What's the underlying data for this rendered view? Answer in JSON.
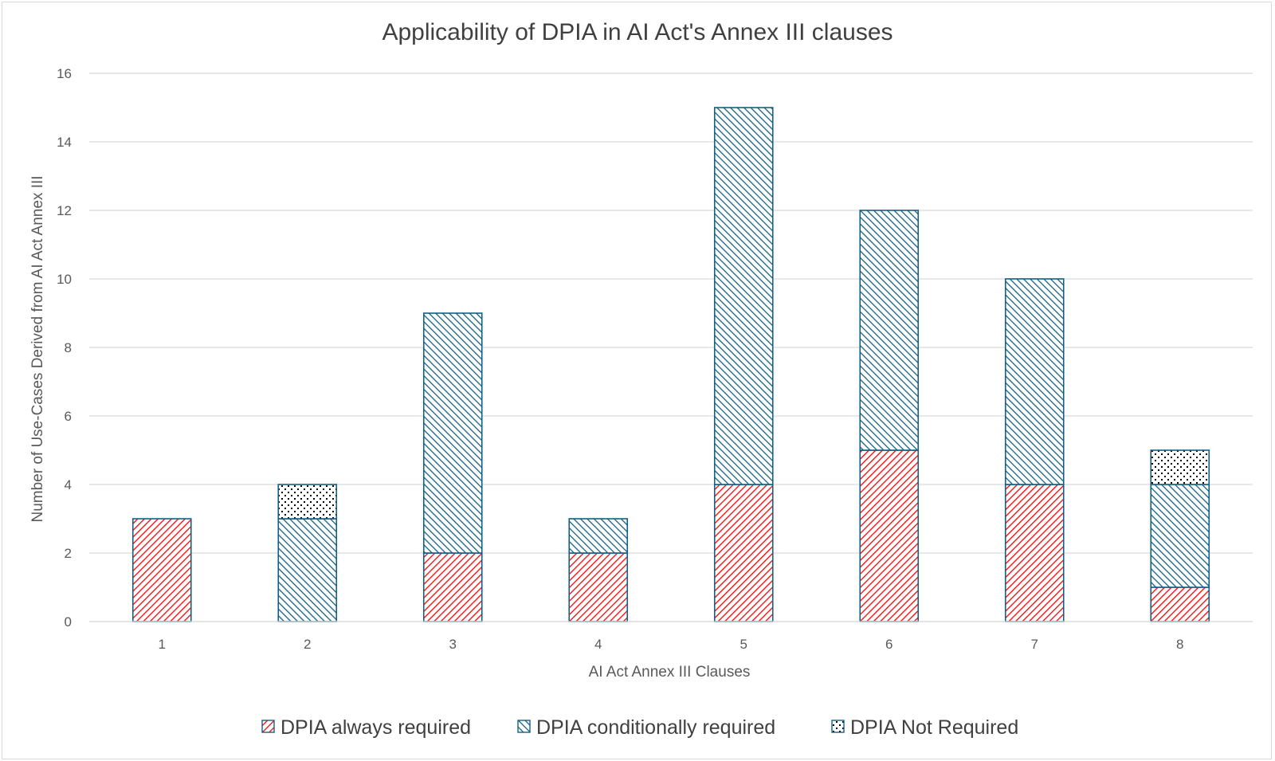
{
  "chart_data": {
    "type": "bar",
    "stacked": true,
    "title": "Applicability of DPIA in AI Act's Annex III clauses",
    "xlabel": "AI Act Annex III Clauses",
    "ylabel": "Number of Use-Cases Derived from AI Act Annex III",
    "categories": [
      "1",
      "2",
      "3",
      "4",
      "5",
      "6",
      "7",
      "8"
    ],
    "ylim": [
      0,
      16
    ],
    "yticks": [
      "0",
      "2",
      "4",
      "6",
      "8",
      "10",
      "12",
      "14",
      "16"
    ],
    "grid": true,
    "legend_position": "bottom",
    "series": [
      {
        "name": "DPIA always required",
        "values": [
          3,
          0,
          2,
          2,
          4,
          5,
          4,
          1
        ],
        "color": "#ff0000",
        "pattern": "hatch-up"
      },
      {
        "name": "DPIA conditionally required",
        "values": [
          0,
          3,
          7,
          1,
          11,
          7,
          6,
          3
        ],
        "color": "#156082",
        "pattern": "hatch-down"
      },
      {
        "name": "DPIA Not Required",
        "values": [
          0,
          1,
          0,
          0,
          0,
          0,
          0,
          1
        ],
        "color": "#000000",
        "pattern": "dots"
      }
    ],
    "border_color": "#156082"
  }
}
